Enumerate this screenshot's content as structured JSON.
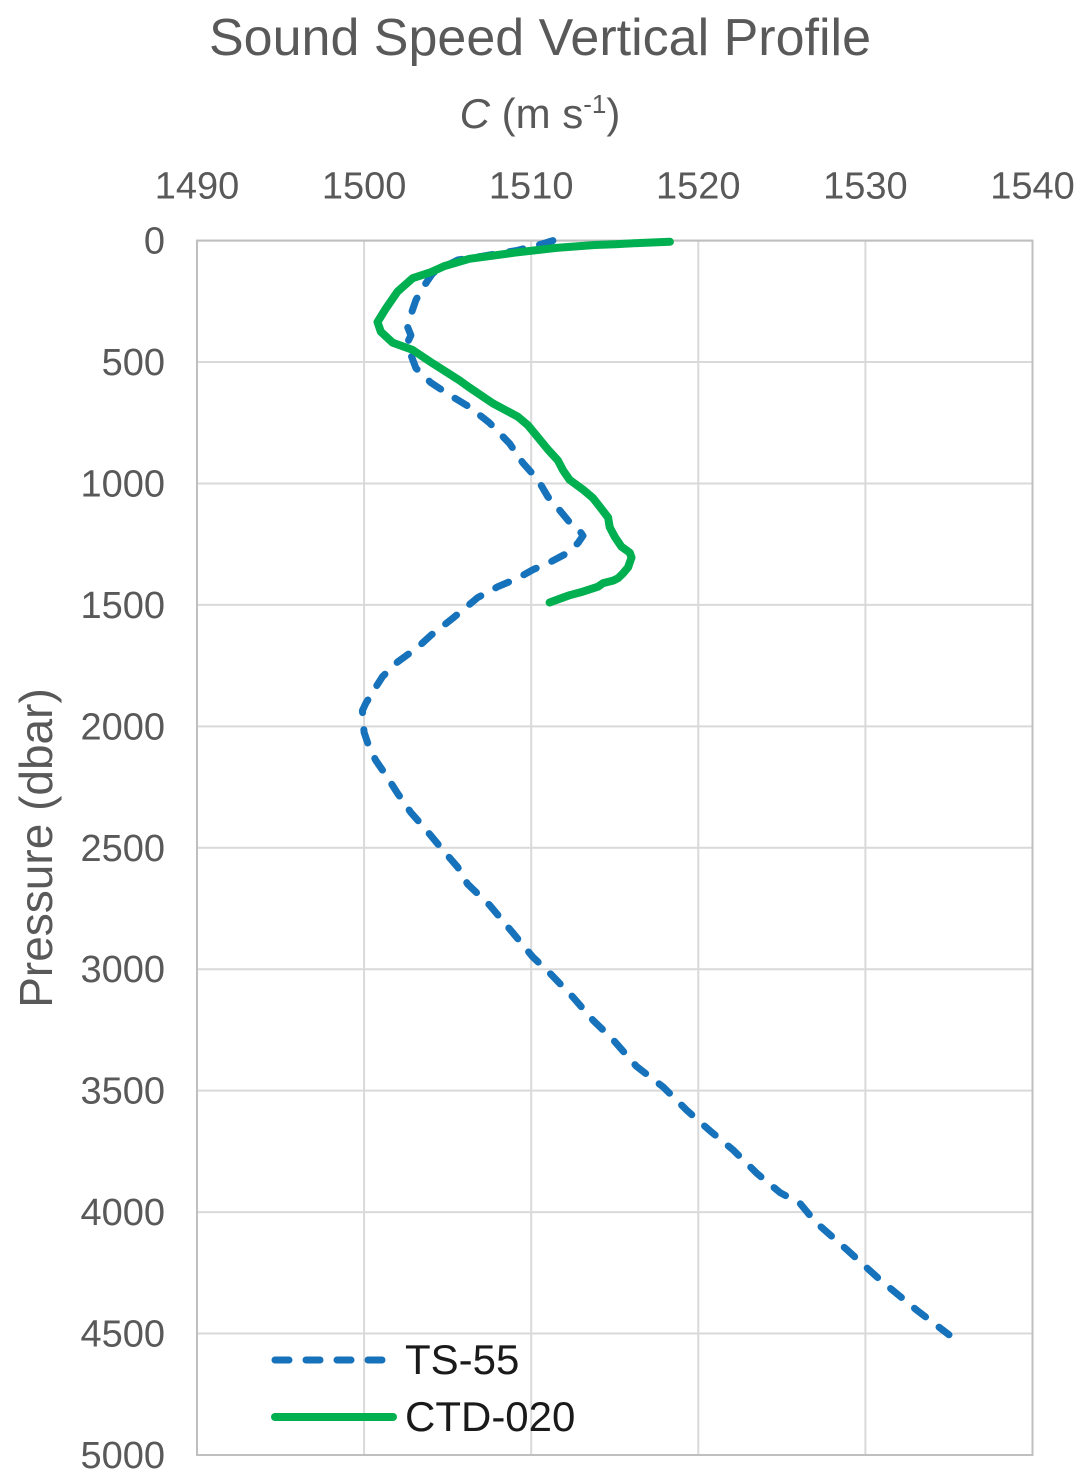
{
  "chart_data": {
    "type": "line",
    "title": "Sound Speed Vertical Profile",
    "xlabel": {
      "variable": "C",
      "unit_prefix": " (m s",
      "unit_superscript": "-1",
      "unit_suffix": ")"
    },
    "ylabel": "Pressure (dbar)",
    "xlim": [
      1490,
      1540
    ],
    "ylim": [
      0,
      5000
    ],
    "x_ticks": [
      1490,
      1500,
      1510,
      1520,
      1530,
      1540
    ],
    "y_ticks": [
      0,
      500,
      1000,
      1500,
      2000,
      2500,
      3000,
      3500,
      4000,
      4500,
      5000
    ],
    "grid": true,
    "legend_position": "inside-bottom-left",
    "colors": {
      "grid": "#D9D9D9",
      "border": "#BFBFBF",
      "axis_text": "#595959",
      "title_text": "#595959",
      "legend_text": "#1A1A1A"
    },
    "series": [
      {
        "name": "TS-55",
        "color": "#1672BB",
        "style": "dashed",
        "points": [
          [
            1511.3,
            0
          ],
          [
            1510.6,
            15
          ],
          [
            1509.2,
            40
          ],
          [
            1507.0,
            65
          ],
          [
            1505.6,
            80
          ],
          [
            1504.6,
            115
          ],
          [
            1504.1,
            135
          ],
          [
            1503.5,
            195
          ],
          [
            1503.1,
            245
          ],
          [
            1502.8,
            305
          ],
          [
            1502.6,
            355
          ],
          [
            1502.8,
            390
          ],
          [
            1502.6,
            420
          ],
          [
            1502.8,
            470
          ],
          [
            1503.1,
            525
          ],
          [
            1504.0,
            585
          ],
          [
            1505.1,
            635
          ],
          [
            1506.3,
            685
          ],
          [
            1507.5,
            750
          ],
          [
            1508.7,
            835
          ],
          [
            1509.5,
            915
          ],
          [
            1510.4,
            985
          ],
          [
            1511.0,
            1055
          ],
          [
            1511.7,
            1110
          ],
          [
            1512.3,
            1160
          ],
          [
            1512.8,
            1185
          ],
          [
            1513.1,
            1215
          ],
          [
            1512.8,
            1245
          ],
          [
            1512.2,
            1285
          ],
          [
            1511.1,
            1325
          ],
          [
            1510.1,
            1355
          ],
          [
            1509.2,
            1390
          ],
          [
            1508.0,
            1425
          ],
          [
            1506.8,
            1470
          ],
          [
            1505.3,
            1555
          ],
          [
            1504.0,
            1625
          ],
          [
            1503.2,
            1675
          ],
          [
            1502.0,
            1735
          ],
          [
            1501.1,
            1795
          ],
          [
            1500.5,
            1860
          ],
          [
            1500.1,
            1905
          ],
          [
            1499.9,
            1935
          ],
          [
            1500.0,
            2025
          ],
          [
            1500.3,
            2085
          ],
          [
            1500.7,
            2140
          ],
          [
            1501.3,
            2200
          ],
          [
            1502.0,
            2275
          ],
          [
            1502.8,
            2355
          ],
          [
            1503.7,
            2425
          ],
          [
            1504.6,
            2500
          ],
          [
            1505.6,
            2580
          ],
          [
            1506.2,
            2650
          ],
          [
            1507.5,
            2735
          ],
          [
            1508.9,
            2850
          ],
          [
            1510.1,
            2950
          ],
          [
            1511.1,
            3015
          ],
          [
            1512.5,
            3115
          ],
          [
            1513.7,
            3210
          ],
          [
            1514.9,
            3290
          ],
          [
            1516.3,
            3400
          ],
          [
            1517.9,
            3485
          ],
          [
            1519.3,
            3580
          ],
          [
            1520.7,
            3665
          ],
          [
            1522.1,
            3745
          ],
          [
            1523.5,
            3840
          ],
          [
            1524.9,
            3920
          ],
          [
            1526.1,
            3965
          ],
          [
            1527.0,
            4040
          ],
          [
            1528.9,
            4155
          ],
          [
            1530.9,
            4280
          ],
          [
            1533.1,
            4405
          ],
          [
            1535.0,
            4505
          ]
        ]
      },
      {
        "name": "CTD-020",
        "color": "#00AF50",
        "style": "solid",
        "points": [
          [
            1518.3,
            5
          ],
          [
            1516.5,
            10
          ],
          [
            1515.0,
            15
          ],
          [
            1513.8,
            18
          ],
          [
            1511.5,
            30
          ],
          [
            1509.0,
            50
          ],
          [
            1506.3,
            75
          ],
          [
            1504.8,
            105
          ],
          [
            1504.0,
            130
          ],
          [
            1502.9,
            155
          ],
          [
            1502.0,
            210
          ],
          [
            1501.3,
            280
          ],
          [
            1500.8,
            335
          ],
          [
            1501.0,
            375
          ],
          [
            1501.7,
            420
          ],
          [
            1502.9,
            450
          ],
          [
            1504.1,
            505
          ],
          [
            1505.7,
            575
          ],
          [
            1506.3,
            605
          ],
          [
            1507.7,
            670
          ],
          [
            1509.2,
            725
          ],
          [
            1509.8,
            760
          ],
          [
            1510.4,
            810
          ],
          [
            1511.0,
            860
          ],
          [
            1511.6,
            905
          ],
          [
            1511.9,
            945
          ],
          [
            1512.3,
            985
          ],
          [
            1513.1,
            1025
          ],
          [
            1513.7,
            1060
          ],
          [
            1514.1,
            1095
          ],
          [
            1514.6,
            1140
          ],
          [
            1514.7,
            1180
          ],
          [
            1515.0,
            1220
          ],
          [
            1515.4,
            1260
          ],
          [
            1515.9,
            1285
          ],
          [
            1516.0,
            1305
          ],
          [
            1515.8,
            1345
          ],
          [
            1515.5,
            1370
          ],
          [
            1515.2,
            1390
          ],
          [
            1514.9,
            1400
          ],
          [
            1514.3,
            1410
          ],
          [
            1514.0,
            1425
          ],
          [
            1513.1,
            1445
          ],
          [
            1512.3,
            1460
          ],
          [
            1511.7,
            1475
          ],
          [
            1511.1,
            1490
          ]
        ]
      }
    ]
  }
}
